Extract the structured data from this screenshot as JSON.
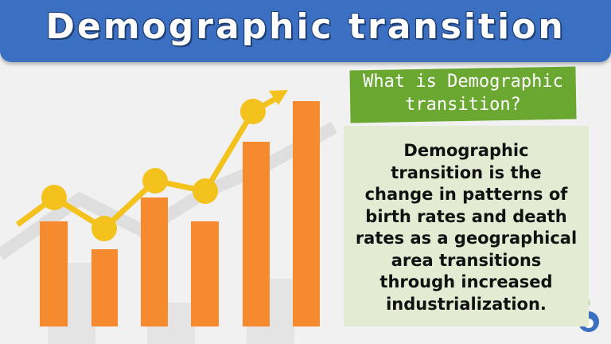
{
  "header": {
    "title": "Demographic transition"
  },
  "question": {
    "lines": [
      "What is Demographic",
      "transition?"
    ]
  },
  "definition": {
    "lines": [
      "Demographic",
      "transition is the",
      "change in patterns of",
      "birth rates and death",
      "rates as a geographical",
      "area transitions",
      "through increased",
      "industrialization."
    ]
  }
}
